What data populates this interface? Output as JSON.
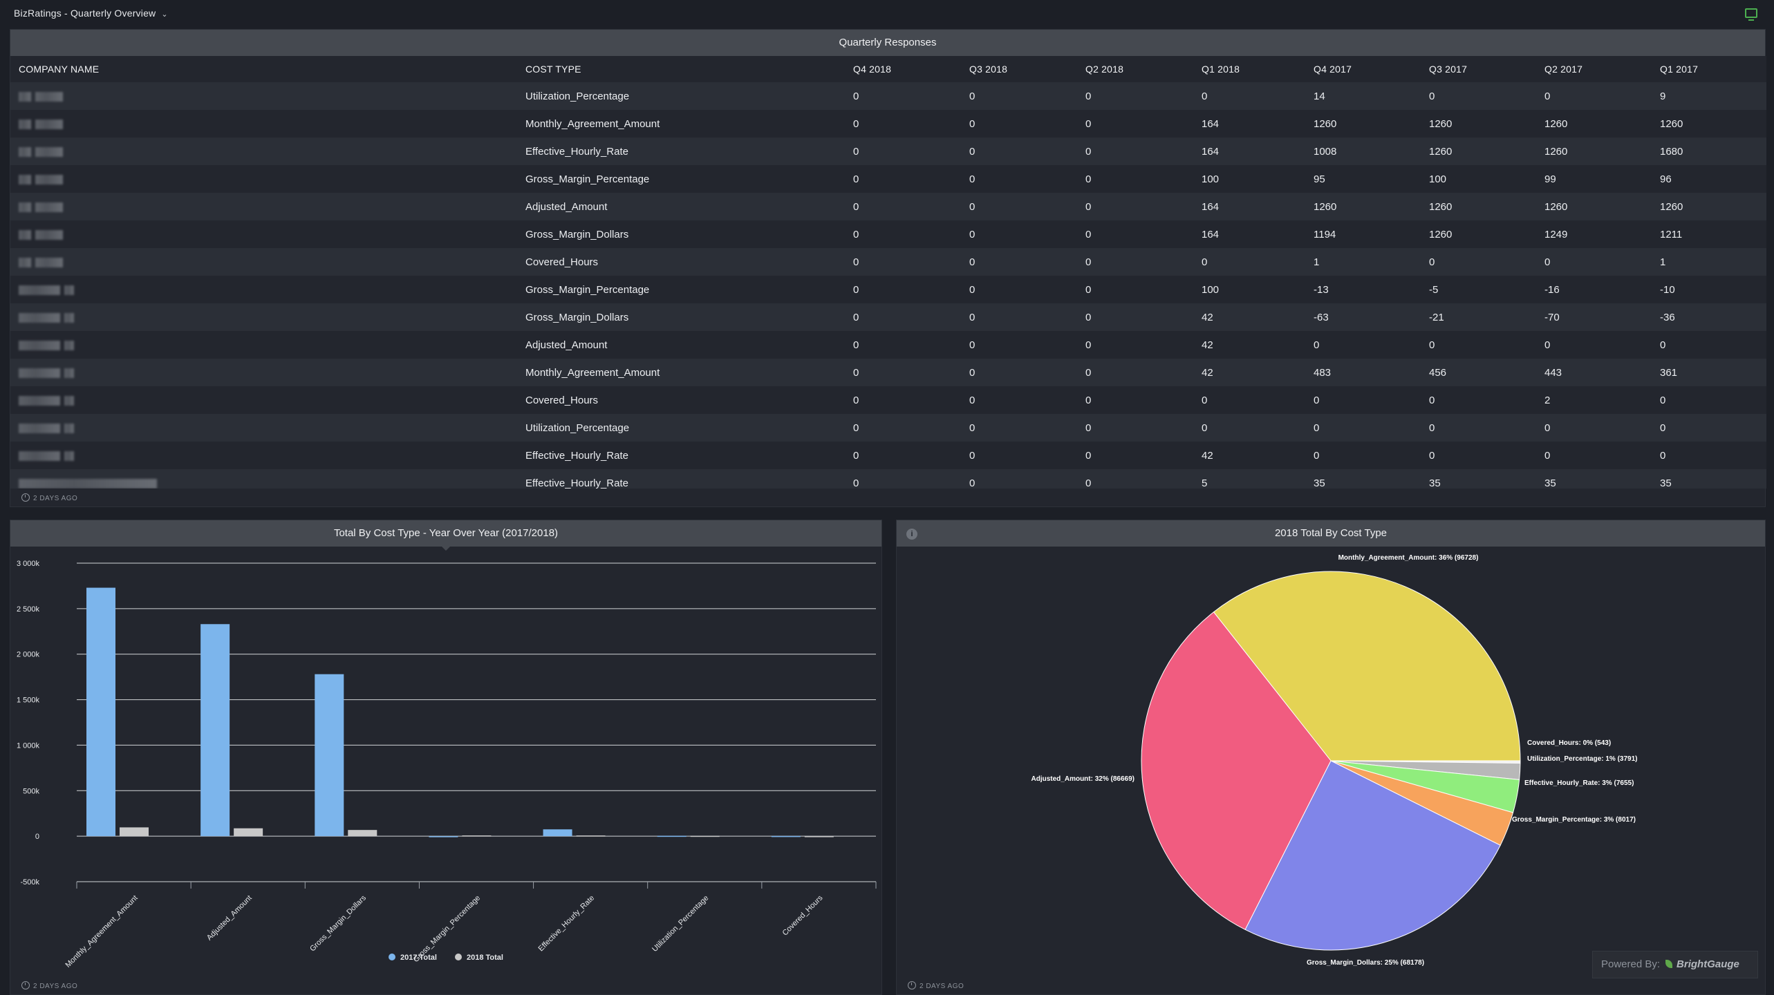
{
  "app": {
    "title": "BizRatings - Quarterly Overview"
  },
  "table": {
    "title": "Quarterly Responses",
    "columns": [
      "COMPANY NAME",
      "COST TYPE",
      "Q4 2018",
      "Q3 2018",
      "Q2 2018",
      "Q1 2018",
      "Q4 2017",
      "Q3 2017",
      "Q2 2017",
      "Q1 2017"
    ],
    "rows": [
      {
        "cost_type": "Utilization_Percentage",
        "values": [
          "0",
          "0",
          "0",
          "0",
          "14",
          "0",
          "0",
          "9"
        ]
      },
      {
        "cost_type": "Monthly_Agreement_Amount",
        "values": [
          "0",
          "0",
          "0",
          "164",
          "1260",
          "1260",
          "1260",
          "1260"
        ]
      },
      {
        "cost_type": "Effective_Hourly_Rate",
        "values": [
          "0",
          "0",
          "0",
          "164",
          "1008",
          "1260",
          "1260",
          "1680"
        ]
      },
      {
        "cost_type": "Gross_Margin_Percentage",
        "values": [
          "0",
          "0",
          "0",
          "100",
          "95",
          "100",
          "99",
          "96"
        ]
      },
      {
        "cost_type": "Adjusted_Amount",
        "values": [
          "0",
          "0",
          "0",
          "164",
          "1260",
          "1260",
          "1260",
          "1260"
        ]
      },
      {
        "cost_type": "Gross_Margin_Dollars",
        "values": [
          "0",
          "0",
          "0",
          "164",
          "1194",
          "1260",
          "1249",
          "1211"
        ]
      },
      {
        "cost_type": "Covered_Hours",
        "values": [
          "0",
          "0",
          "0",
          "0",
          "1",
          "0",
          "0",
          "1"
        ]
      },
      {
        "cost_type": "Gross_Margin_Percentage",
        "values": [
          "0",
          "0",
          "0",
          "100",
          "-13",
          "-5",
          "-16",
          "-10"
        ]
      },
      {
        "cost_type": "Gross_Margin_Dollars",
        "values": [
          "0",
          "0",
          "0",
          "42",
          "-63",
          "-21",
          "-70",
          "-36"
        ]
      },
      {
        "cost_type": "Adjusted_Amount",
        "values": [
          "0",
          "0",
          "0",
          "42",
          "0",
          "0",
          "0",
          "0"
        ]
      },
      {
        "cost_type": "Monthly_Agreement_Amount",
        "values": [
          "0",
          "0",
          "0",
          "42",
          "483",
          "456",
          "443",
          "361"
        ]
      },
      {
        "cost_type": "Covered_Hours",
        "values": [
          "0",
          "0",
          "0",
          "0",
          "0",
          "0",
          "2",
          "0"
        ]
      },
      {
        "cost_type": "Utilization_Percentage",
        "values": [
          "0",
          "0",
          "0",
          "0",
          "0",
          "0",
          "0",
          "0"
        ]
      },
      {
        "cost_type": "Effective_Hourly_Rate",
        "values": [
          "0",
          "0",
          "0",
          "42",
          "0",
          "0",
          "0",
          "0"
        ]
      },
      {
        "cost_type": "Effective_Hourly_Rate",
        "values": [
          "0",
          "0",
          "0",
          "5",
          "35",
          "35",
          "35",
          "35"
        ]
      }
    ],
    "updated": "2 DAYS AGO"
  },
  "bar_panel": {
    "updated": "2 DAYS AGO"
  },
  "pie_panel": {
    "updated": "2 DAYS AGO"
  },
  "chart_data": [
    {
      "type": "bar",
      "title": "Total By Cost Type - Year Over Year (2017/2018)",
      "categories": [
        "Monthly_Agreement_Amount",
        "Adjusted_Amount",
        "Gross_Margin_Dollars",
        "Gross_Margin_Percentage",
        "Effective_Hourly_Rate",
        "Utilization_Percentage",
        "Covered_Hours"
      ],
      "series": [
        {
          "name": "2017 Total",
          "color": "#7cb5ec",
          "values": [
            2730000,
            2330000,
            1780000,
            -8000,
            75000,
            4000,
            2000
          ]
        },
        {
          "name": "2018 Total",
          "color": "#c8c8c8",
          "values": [
            96728,
            86669,
            68178,
            8017,
            7655,
            3791,
            543
          ]
        }
      ],
      "yticks": [
        "3 000k",
        "2 500k",
        "2 000k",
        "1 500k",
        "1 000k",
        "500k",
        "0",
        "-500k"
      ],
      "ylim": [
        -500000,
        3000000
      ],
      "grid": true,
      "legend": "bottom-center"
    },
    {
      "type": "pie",
      "title": "2018 Total By Cost Type",
      "slices": [
        {
          "label": "Monthly_Agreement_Amount: 36% (96728)",
          "value": 96728,
          "color": "#e4d354"
        },
        {
          "label": "Covered_Hours: 0% (543)",
          "value": 543,
          "color": "#f0f0f0"
        },
        {
          "label": "Utilization_Percentage: 1% (3791)",
          "value": 3791,
          "color": "#b8b8b8"
        },
        {
          "label": "Effective_Hourly_Rate: 3% (7655)",
          "value": 7655,
          "color": "#90ed7d"
        },
        {
          "label": "Gross_Margin_Percentage: 3% (8017)",
          "value": 8017,
          "color": "#f7a35c"
        },
        {
          "label": "Gross_Margin_Dollars: 25% (68178)",
          "value": 68178,
          "color": "#8085e9"
        },
        {
          "label": "Adjusted_Amount: 32% (86669)",
          "value": 86669,
          "color": "#f15c80"
        }
      ]
    }
  ],
  "powered": {
    "prefix": "Powered By:",
    "brand": "BrightGauge"
  }
}
